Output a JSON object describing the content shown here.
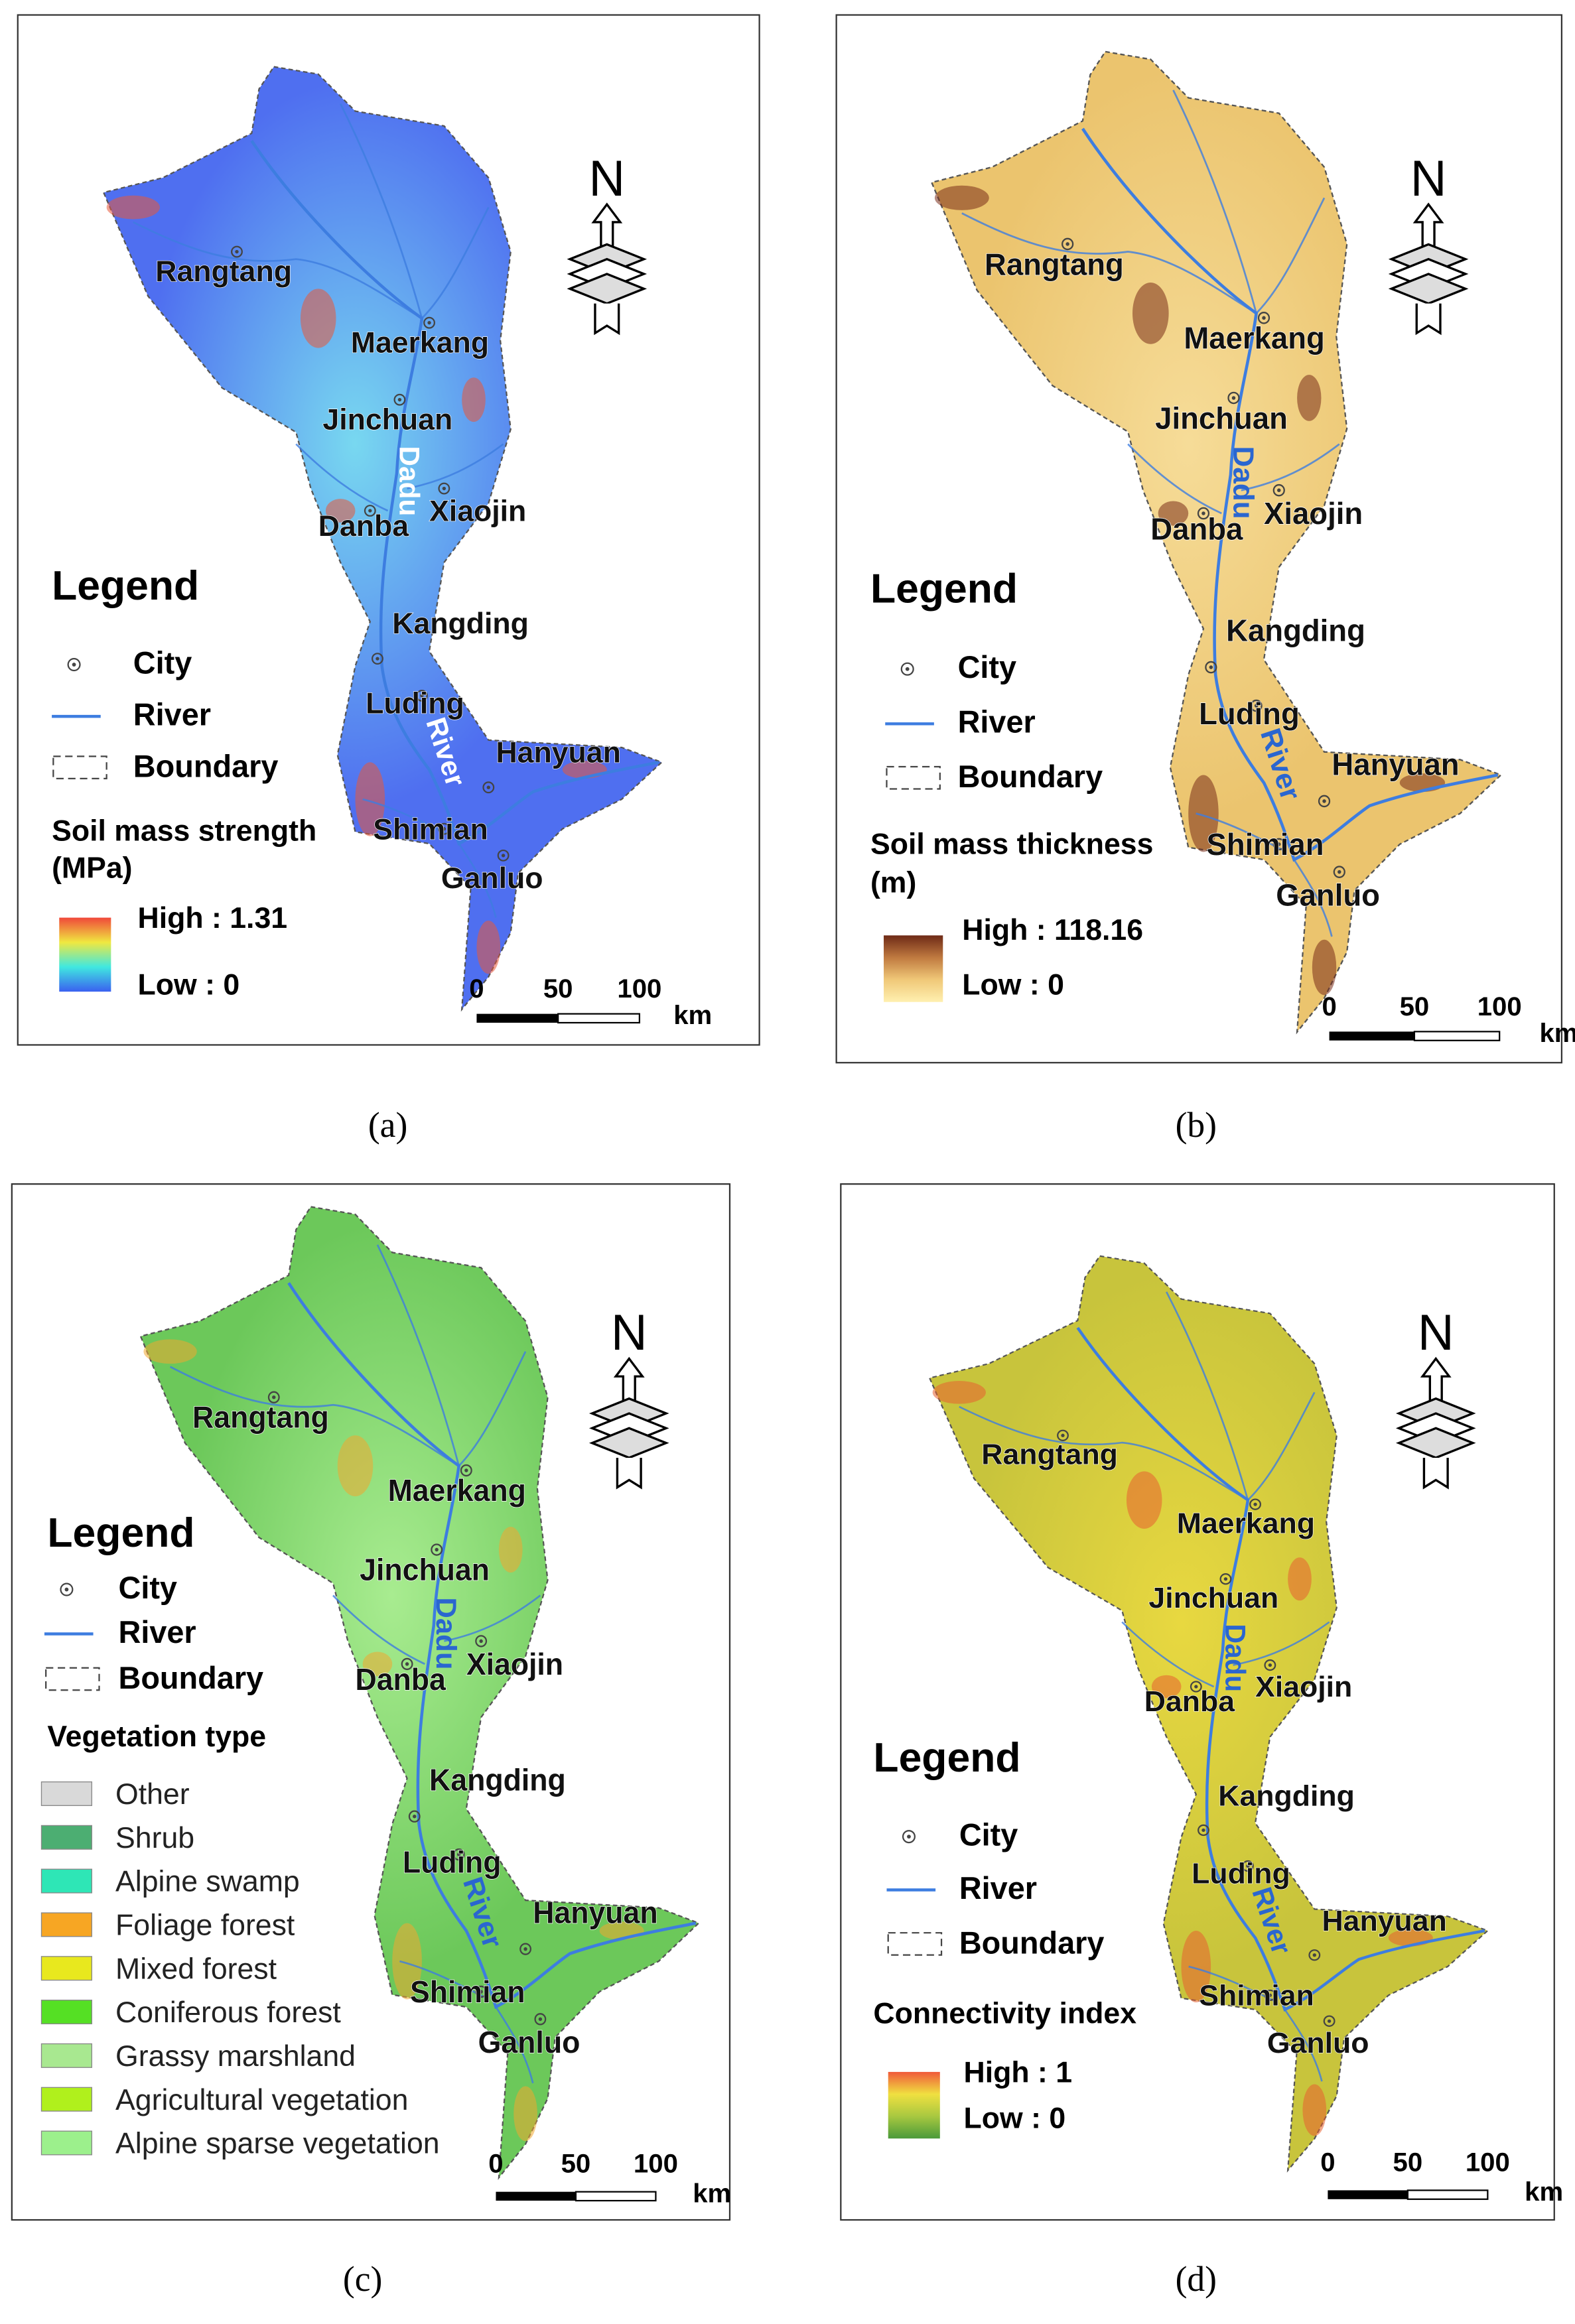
{
  "panels": [
    {
      "caption": "(a)",
      "fill": "#4f6ff0",
      "fill_light": "#78d8f0",
      "fill_dark": "#e8583a",
      "cities": [
        "Rangtang",
        "Maerkang",
        "Jinchuan",
        "Xiaojin",
        "Danba",
        "Kangding",
        "Luding",
        "Hanyuan",
        "Shimian",
        "Ganluo"
      ],
      "river_labels": [
        "Dadu",
        "River"
      ],
      "river_label_color": "#ffffff",
      "north": "N",
      "legend": {
        "title": "Legend",
        "items": [
          "City",
          "River",
          "Boundary"
        ],
        "field_title": "Soil mass strength",
        "field_unit": "(MPa)",
        "high": "High : 1.31",
        "low": "Low : 0",
        "colorbar": [
          "#f0483a",
          "#f0e840",
          "#40e8e0",
          "#3a60f0"
        ]
      },
      "scale": [
        "0",
        "50",
        "100",
        "km"
      ]
    },
    {
      "caption": "(b)",
      "fill": "#ebc46e",
      "fill_light": "#f6dc98",
      "fill_dark": "#7a2e1a",
      "cities": [
        "Rangtang",
        "Maerkang",
        "Jinchuan",
        "Xiaojin",
        "Danba",
        "Kangding",
        "Luding",
        "Hanyuan",
        "Shimian",
        "Ganluo"
      ],
      "river_labels": [
        "Dadu",
        "River"
      ],
      "river_label_color": "#2a66d0",
      "north": "N",
      "legend": {
        "title": "Legend",
        "items": [
          "City",
          "River",
          "Boundary"
        ],
        "field_title": "Soil mass thickness",
        "field_unit": "(m)",
        "high": "High : 118.16",
        "low": "Low : 0",
        "colorbar": [
          "#6e2a16",
          "#c07a40",
          "#f0c878",
          "#fff0b0"
        ]
      },
      "scale": [
        "0",
        "50",
        "100",
        "km"
      ]
    },
    {
      "caption": "(c)",
      "fill": "#6cc85a",
      "fill_light": "#a8ec90",
      "fill_dark": "#f0a830",
      "cities": [
        "Rangtang",
        "Maerkang",
        "Jinchuan",
        "Xiaojin",
        "Danba",
        "Kangding",
        "Luding",
        "Hanyuan",
        "Shimian",
        "Ganluo"
      ],
      "river_labels": [
        "Dadu",
        "River"
      ],
      "river_label_color": "#2a66d0",
      "north": "N",
      "legend": {
        "title": "Legend",
        "items": [
          "City",
          "River",
          "Boundary"
        ],
        "field_title": "Vegetation type",
        "classes": [
          {
            "name": "Other",
            "color": "#d9d9d9"
          },
          {
            "name": "Shrub",
            "color": "#4cae72"
          },
          {
            "name": "Alpine swamp",
            "color": "#2ee6b6"
          },
          {
            "name": "Foliage forest",
            "color": "#f7a623"
          },
          {
            "name": "Mixed forest",
            "color": "#e8e81e"
          },
          {
            "name": "Coniferous forest",
            "color": "#55e024"
          },
          {
            "name": "Grassy marshland",
            "color": "#a8e890"
          },
          {
            "name": "Agricultural vegetation",
            "color": "#b0f01c"
          },
          {
            "name": "Alpine sparse vegetation",
            "color": "#9cf08c"
          }
        ]
      },
      "scale": [
        "0",
        "50",
        "100",
        "km"
      ]
    },
    {
      "caption": "(d)",
      "fill": "#c8c43c",
      "fill_light": "#e8d840",
      "fill_dark": "#e86030",
      "cities": [
        "Rangtang",
        "Maerkang",
        "Jinchuan",
        "Xiaojin",
        "Danba",
        "Kangding",
        "Luding",
        "Hanyuan",
        "Shimian",
        "Ganluo"
      ],
      "river_labels": [
        "Dadu",
        "River"
      ],
      "river_label_color": "#2a66d0",
      "north": "N",
      "legend": {
        "title": "Legend",
        "items": [
          "City",
          "River",
          "Boundary"
        ],
        "field_title": "Connectivity index",
        "high": "High : 1",
        "low": "Low : 0",
        "colorbar": [
          "#f05a3a",
          "#f0e040",
          "#a8c840",
          "#4a9a3a"
        ]
      },
      "scale": [
        "0",
        "50",
        "100",
        "km"
      ]
    }
  ]
}
